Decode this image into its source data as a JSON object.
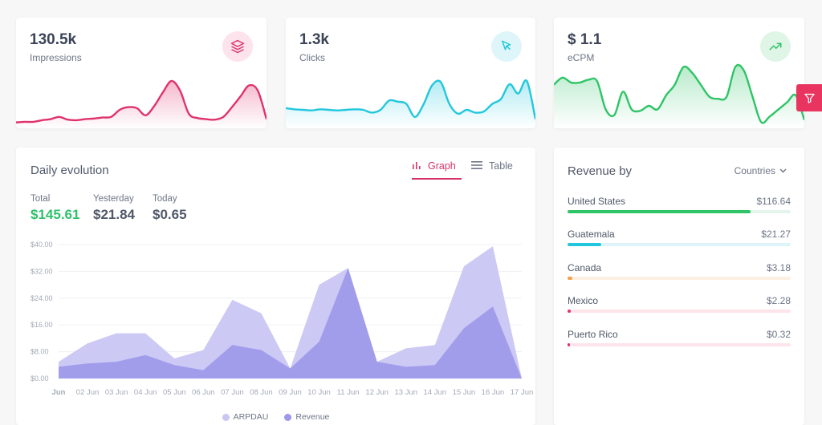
{
  "stats": [
    {
      "value": "130.5k",
      "label": "Impressions",
      "icon": "layers-icon",
      "color": "#e0336b",
      "icon_bg": "#fce3ec",
      "series": [
        2,
        3,
        3,
        6,
        8,
        12,
        7,
        6,
        8,
        9,
        11,
        12,
        25,
        30,
        28,
        15,
        32,
        57,
        78,
        60,
        18,
        10,
        8,
        7,
        12,
        30,
        50,
        70,
        60,
        8
      ]
    },
    {
      "value": "1.3k",
      "label": "Clicks",
      "icon": "cursor-icon",
      "color": "#22c7dd",
      "icon_bg": "#def6fa",
      "series": [
        28,
        26,
        25,
        24,
        26,
        25,
        24,
        25,
        26,
        25,
        20,
        25,
        42,
        40,
        36,
        12,
        35,
        70,
        76,
        36,
        18,
        25,
        20,
        22,
        36,
        45,
        72,
        55,
        78,
        8
      ]
    },
    {
      "value": "$ 1.1",
      "label": "eCPM",
      "icon": "trend-up-icon",
      "color": "#2fc466",
      "icon_bg": "#dff5e6",
      "series": [
        55,
        65,
        58,
        58,
        62,
        60,
        20,
        12,
        45,
        20,
        18,
        25,
        20,
        40,
        55,
        80,
        72,
        55,
        38,
        35,
        38,
        80,
        75,
        38,
        2,
        10,
        20,
        30,
        40,
        5
      ]
    }
  ],
  "filter_icon": "filter-icon",
  "daily": {
    "title": "Daily evolution",
    "tabs": {
      "graph": "Graph",
      "table": "Table"
    },
    "totals": [
      {
        "label": "Total",
        "value": "$145.61"
      },
      {
        "label": "Yesterday",
        "value": "$21.84"
      },
      {
        "label": "Today",
        "value": "$0.65"
      }
    ]
  },
  "chart_data": {
    "type": "area",
    "x": [
      "Jun",
      "02 Jun",
      "03 Jun",
      "04 Jun",
      "05 Jun",
      "06 Jun",
      "07 Jun",
      "08 Jun",
      "09 Jun",
      "10 Jun",
      "11 Jun",
      "12 Jun",
      "13 Jun",
      "14 Jun",
      "15 Jun",
      "16 Jun",
      "17 Jun"
    ],
    "series": [
      {
        "name": "ARPDAU",
        "color": "#c9c6f4",
        "values": [
          5,
          10.5,
          13.5,
          13.5,
          6,
          8.5,
          23.5,
          19.5,
          3,
          28,
          33,
          5,
          9,
          10,
          33.5,
          39.5,
          0
        ]
      },
      {
        "name": "Revenue",
        "color": "#9d98ea",
        "values": [
          3.5,
          4.5,
          5,
          7,
          4,
          2.5,
          10,
          8.5,
          3,
          11,
          33,
          5,
          3.5,
          4,
          15,
          21.5,
          0
        ]
      }
    ],
    "yticks": [
      "$0.00",
      "$8.00",
      "$16.00",
      "$24.00",
      "$32.00",
      "$40.00"
    ],
    "ylim": [
      0,
      40
    ],
    "xlabel": "",
    "ylabel": "",
    "legend": "bottom"
  },
  "revenue": {
    "title": "Revenue by",
    "select": "Countries",
    "rows": [
      {
        "name": "United States",
        "amount": "$116.64",
        "fraction": 0.82,
        "color": "#2fc466",
        "track": "#e4f6ec"
      },
      {
        "name": "Guatemala",
        "amount": "$21.27",
        "fraction": 0.15,
        "color": "#22c7dd",
        "track": "#ddf5fa"
      },
      {
        "name": "Canada",
        "amount": "$3.18",
        "fraction": 0.02,
        "color": "#f4a24a",
        "track": "#fdefe2"
      },
      {
        "name": "Mexico",
        "amount": "$2.28",
        "fraction": 0.015,
        "color": "#e0336b",
        "track": "#fce4ea"
      },
      {
        "name": "Puerto Rico",
        "amount": "$0.32",
        "fraction": 0.003,
        "color": "#e0336b",
        "track": "#fce4ea"
      }
    ]
  }
}
